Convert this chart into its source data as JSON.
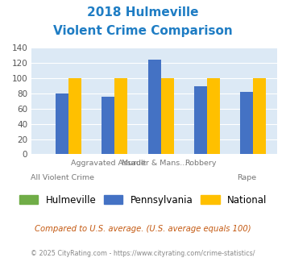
{
  "title_line1": "2018 Hulmeville",
  "title_line2": "Violent Crime Comparison",
  "hulmeville": [
    0,
    0,
    0,
    0,
    0
  ],
  "pennsylvania": [
    80,
    76,
    124,
    89,
    82
  ],
  "national": [
    100,
    100,
    100,
    100,
    100
  ],
  "ylim": [
    0,
    140
  ],
  "yticks": [
    0,
    20,
    40,
    60,
    80,
    100,
    120,
    140
  ],
  "bar_width": 0.28,
  "color_hulmeville": "#70ad47",
  "color_pennsylvania": "#4472c4",
  "color_national": "#ffc000",
  "title_color": "#1f7dc4",
  "plot_bg": "#dce9f5",
  "footnote1": "Compared to U.S. average. (U.S. average equals 100)",
  "footnote2": "© 2025 CityRating.com - https://www.cityrating.com/crime-statistics/",
  "footnote1_color": "#c45911",
  "footnote2_color": "#888888",
  "x_top_labels": [
    "",
    "Aggravated Assault",
    "Murder & Mans...",
    "Robbery",
    ""
  ],
  "x_bot_labels": [
    "All Violent Crime",
    "",
    "",
    "",
    "Rape"
  ]
}
